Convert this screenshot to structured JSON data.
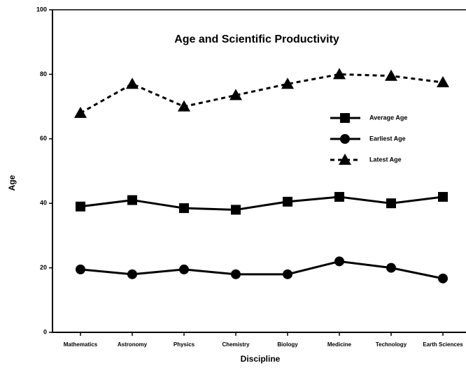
{
  "chart_data": {
    "type": "line",
    "title": "Age and Scientific Productivity",
    "x_label": "Discipline",
    "y_label": "Age",
    "categories": [
      "Mathematics",
      "Astronomy",
      "Physics",
      "Chemistry",
      "Biology",
      "Medicine",
      "Technology",
      "Earth Sciences"
    ],
    "series": [
      {
        "name": "Average Age",
        "color": "#000000",
        "marker": "square",
        "dash": false,
        "values": [
          39,
          41,
          38.5,
          38,
          40.5,
          42,
          40,
          42
        ]
      },
      {
        "name": "Earliest Age",
        "color": "#000000",
        "marker": "circle",
        "dash": false,
        "values": [
          19.5,
          18,
          19.5,
          18,
          18,
          22,
          20,
          16.7
        ]
      },
      {
        "name": "Latest Age",
        "color": "#000000",
        "marker": "triangle",
        "dash": true,
        "values": [
          68,
          77,
          70,
          73.5,
          77,
          80,
          79.5,
          77.5
        ]
      }
    ],
    "ylim": [
      0,
      100
    ],
    "yticks": [
      0,
      20,
      40,
      60,
      80,
      100
    ],
    "grid": false
  }
}
